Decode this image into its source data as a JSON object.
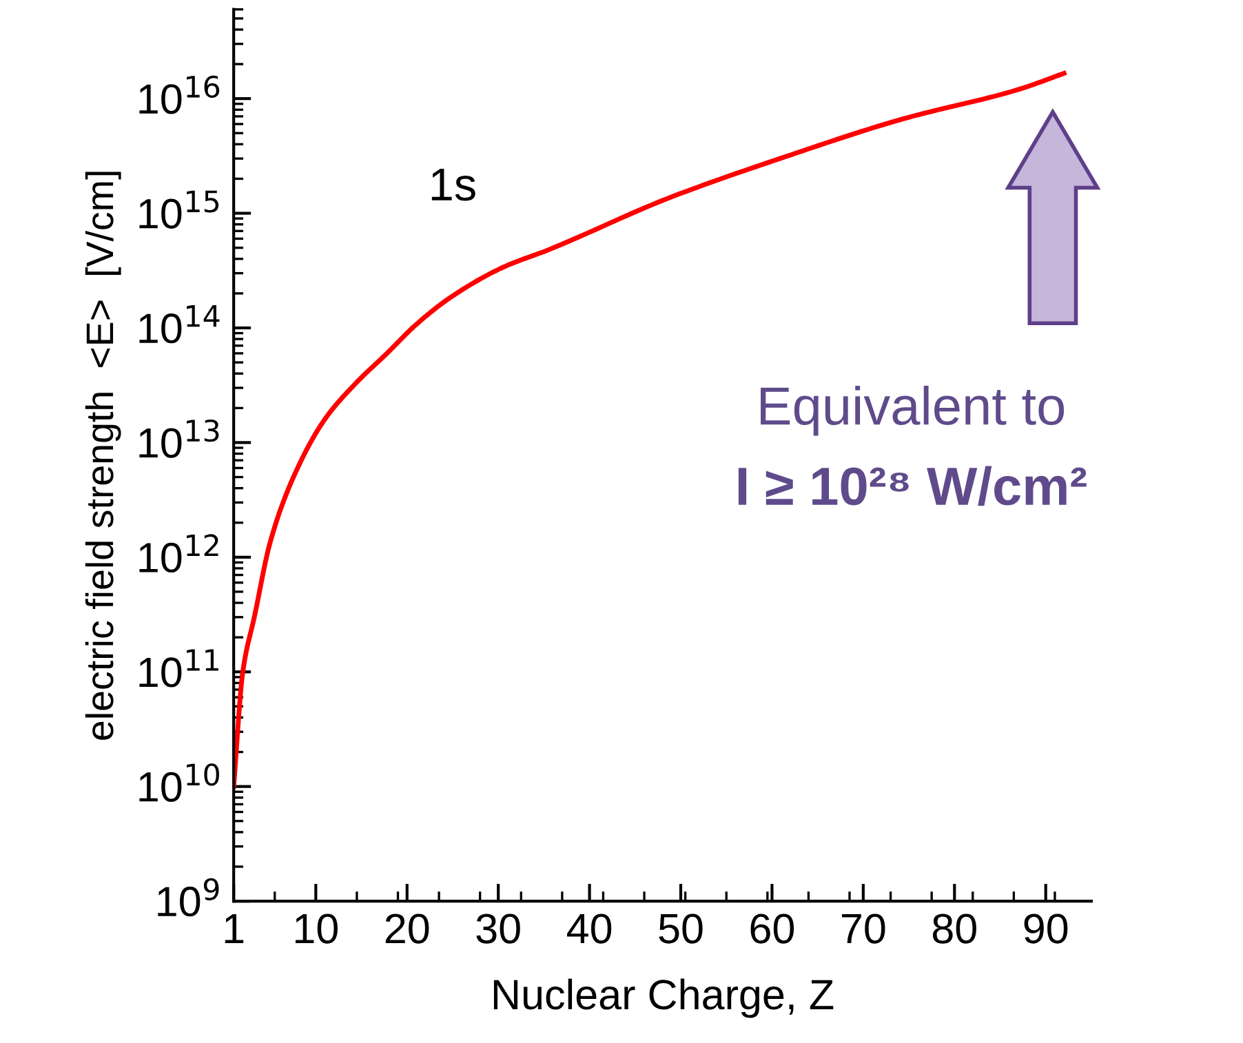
{
  "chart_data": {
    "type": "line",
    "xlabel": "Nuclear Charge, Z",
    "ylabel": "electric field strength  <E>  [V/cm]",
    "log": "y",
    "grid": false,
    "legend": false,
    "marker": "none",
    "line_style": "solid",
    "xlim": [
      1,
      95
    ],
    "xticks": [
      1,
      10,
      20,
      30,
      40,
      50,
      60,
      70,
      80,
      90
    ],
    "ylim": [
      1000000000.0,
      6e+16
    ],
    "yticks": [
      {
        "value": 1000000000.0,
        "label": "10$^{9}$"
      },
      {
        "value": 10000000000.0,
        "label": "10$^{10}$"
      },
      {
        "value": 100000000000.0,
        "label": "10$^{11}$"
      },
      {
        "value": 1000000000000.0,
        "label": "10$^{12}$"
      },
      {
        "value": 10000000000000.0,
        "label": "10$^{13}$"
      },
      {
        "value": 100000000000000.0,
        "label": "10$^{14}$"
      },
      {
        "value": 1000000000000000.0,
        "label": "10$^{15}$"
      },
      {
        "value": 1e+16,
        "label": "10$^{16}$"
      }
    ],
    "series": [
      {
        "name": "1s",
        "color": "#ff0000",
        "x": [
          1,
          2,
          3.3,
          5,
          7.6,
          11,
          14.4,
          17.8,
          21,
          25,
          30.6,
          35.5,
          48.6,
          61.4,
          74.2,
          87,
          92
        ],
        "values": [
          10000000000.0,
          100000000000.0,
          310000000000.0,
          1350000000000.0,
          5100000000000.0,
          16000000000000.0,
          33000000000000.0,
          60000000000000.0,
          107000000000000.0,
          190000000000000.0,
          340000000000000.0,
          480000000000000.0,
          1350000000000000.0,
          3100000000000000.0,
          6600000000000000.0,
          1.2e+16,
          1.66e+16
        ]
      }
    ],
    "annotations": [
      "Equivalent to\nI ≥ 10²⁸ W/cm²"
    ]
  }
}
